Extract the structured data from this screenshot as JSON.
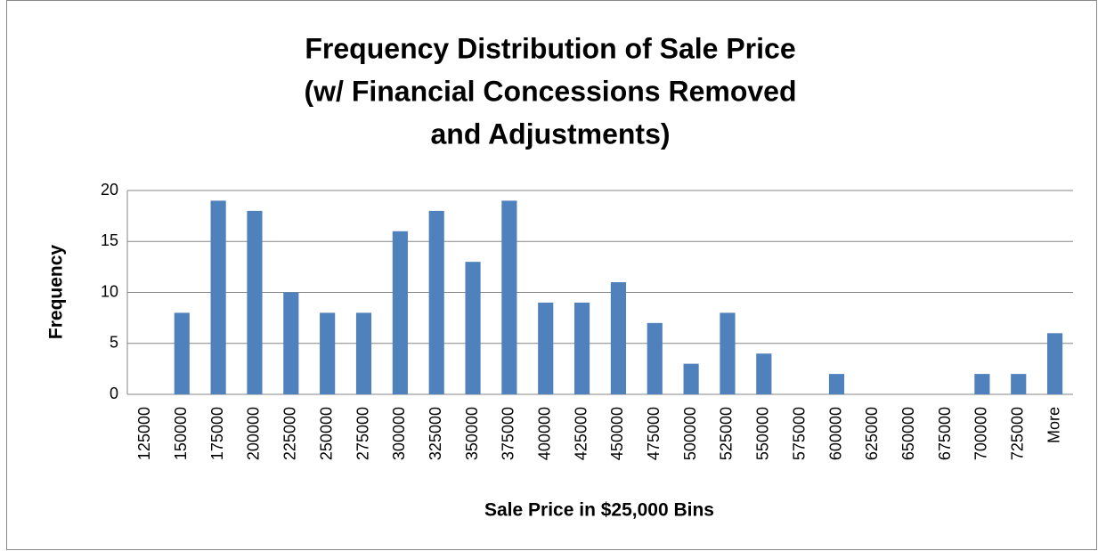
{
  "chart_data": {
    "type": "bar",
    "title": [
      "Frequency Distribution of Sale Price",
      "(w/ Financial Concessions Removed",
      "and Adjustments)"
    ],
    "x_label": "Sale Price in $25,000 Bins",
    "y_label": "Frequency",
    "categories": [
      "125000",
      "150000",
      "175000",
      "200000",
      "225000",
      "250000",
      "275000",
      "300000",
      "325000",
      "350000",
      "375000",
      "400000",
      "425000",
      "450000",
      "475000",
      "500000",
      "525000",
      "550000",
      "575000",
      "600000",
      "625000",
      "650000",
      "675000",
      "700000",
      "725000",
      "More"
    ],
    "values": [
      0,
      8,
      19,
      18,
      10,
      8,
      8,
      16,
      18,
      13,
      19,
      9,
      9,
      11,
      7,
      3,
      8,
      4,
      0,
      2,
      0,
      0,
      0,
      2,
      2,
      6
    ],
    "color": "#4f81bd",
    "ylim": [
      0,
      20
    ],
    "yticks": [
      0,
      5,
      10,
      15,
      20
    ],
    "grid": true
  }
}
